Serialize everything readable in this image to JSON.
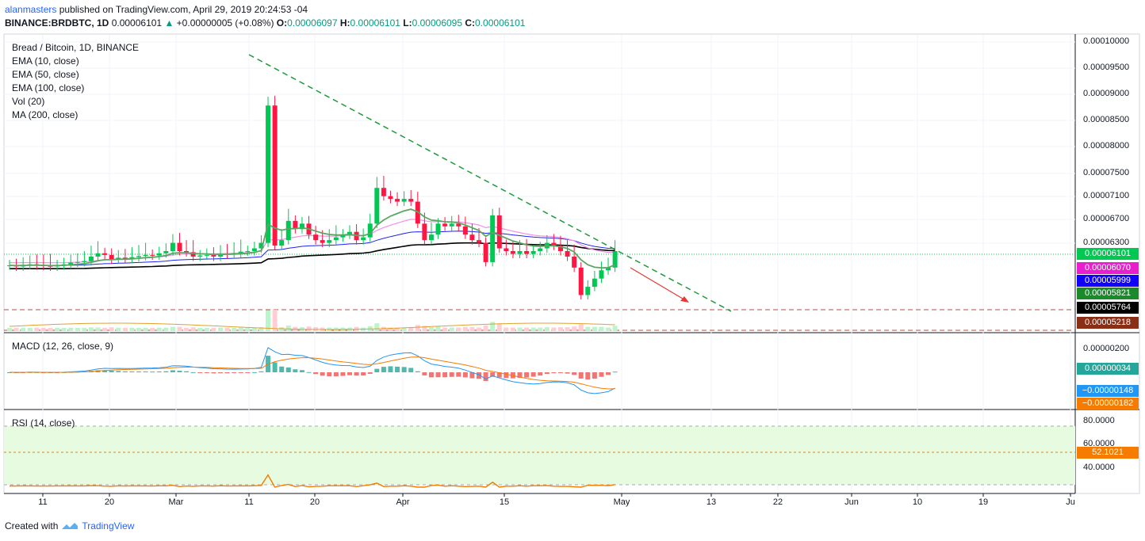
{
  "header": {
    "author": "alanmasters",
    "published_text": "published on TradingView.com, April 29, 2019 20:24:53 -04",
    "symbol_line": "BINANCE:BRDBTC, 1D",
    "last_price": "0.00006101",
    "change_arrow": "▲",
    "change_text": "+0.00000005 (+0.08%)",
    "o_label": "O:",
    "o_value": "0.00006097",
    "h_label": "H:",
    "h_value": "0.00006101",
    "l_label": "L:",
    "l_value": "0.00006095",
    "c_label": "C:",
    "c_value": "0.00006101"
  },
  "legend": {
    "title": "Bread / Bitcoin, 1D, BINANCE",
    "items": [
      "EMA (10, close)",
      "EMA (50, close)",
      "EMA (100, close)",
      "Vol (20)",
      "MA (200, close)"
    ]
  },
  "macd_legend": "MACD (12, 26, close, 9)",
  "rsi_legend": "RSI (14, close)",
  "footer": {
    "created_with": "Created with",
    "brand": "TradingView"
  },
  "price_axis": [
    "0.00010000",
    "0.00009500",
    "0.00009000",
    "0.00008500",
    "0.00008000",
    "0.00007500",
    "0.00007100",
    "0.00006700",
    "0.00006300"
  ],
  "price_badges": [
    {
      "text": "0.00006101",
      "color": "#00c853"
    },
    {
      "text": "0.00006070",
      "color": "#e91ecf"
    },
    {
      "text": "0.00005999",
      "color": "#1200ff"
    },
    {
      "text": "0.00005821",
      "color": "#1b8a2a"
    },
    {
      "text": "0.00005764",
      "color": "#000000"
    },
    {
      "text": "0.00005218",
      "color": "#8b2e16"
    }
  ],
  "macd_axis": [
    "0.00000200"
  ],
  "macd_badges": [
    {
      "text": "0.00000034",
      "color": "#26a69a"
    },
    {
      "text": "−0.00000148",
      "color": "#2196f3"
    },
    {
      "text": "−0.00000182",
      "color": "#f57c00"
    }
  ],
  "rsi_axis": [
    "80.0000",
    "60.0000",
    "40.0000"
  ],
  "rsi_badge": {
    "text": "52.1021",
    "color": "#f57c00"
  },
  "x_axis": [
    "11",
    "20",
    "Mar",
    "11",
    "20",
    "Apr",
    "15",
    "May",
    "13",
    "22",
    "Jun",
    "10",
    "19",
    "Ju"
  ],
  "chart_data": {
    "type": "candlestick",
    "title": "Bread / Bitcoin, 1D, BINANCE",
    "y_range": [
      5.05e-05,
      0.0001005
    ],
    "candles_close": [
      5.84e-05,
      5.82e-05,
      5.85e-05,
      5.86e-05,
      5.84e-05,
      5.83e-05,
      5.82e-05,
      5.84e-05,
      5.86e-05,
      5.89e-05,
      5.9e-05,
      5.92e-05,
      6e-05,
      6.06e-05,
      6.03e-05,
      5.95e-05,
      5.98e-05,
      5.96e-05,
      5.99e-05,
      6.01e-05,
      6.03e-05,
      6.02e-05,
      6.06e-05,
      6.1e-05,
      6.25e-05,
      6.1e-05,
      6.08e-05,
      6e-05,
      6.02e-05,
      6.03e-05,
      6e-05,
      6.05e-05,
      6.04e-05,
      6.06e-05,
      6.09e-05,
      6.1e-05,
      6.15e-05,
      6.25e-05,
      8.75e-05,
      6.2e-05,
      6.3e-05,
      6.65e-05,
      6.5e-05,
      6.6e-05,
      6.4e-05,
      6.3e-05,
      6.25e-05,
      6.3e-05,
      6.35e-05,
      6.4e-05,
      6.45e-05,
      6.3e-05,
      6.35e-05,
      6.6e-05,
      7.25e-05,
      7.1e-05,
      7.05e-05,
      7e-05,
      7.05e-05,
      7e-05,
      6.6e-05,
      6.3e-05,
      6.4e-05,
      6.6e-05,
      6.55e-05,
      6.6e-05,
      6.55e-05,
      6.4e-05,
      6.3e-05,
      6.25e-05,
      5.9e-05,
      6.75e-05,
      6.15e-05,
      6.1e-05,
      6.05e-05,
      6.1e-05,
      6.05e-05,
      6.1e-05,
      6.15e-05,
      6.25e-05,
      6.2e-05,
      6.1e-05,
      6e-05,
      5.8e-05,
      5.3e-05,
      5.45e-05,
      5.6e-05,
      5.75e-05,
      5.8e-05,
      6.1e-05
    ]
  }
}
